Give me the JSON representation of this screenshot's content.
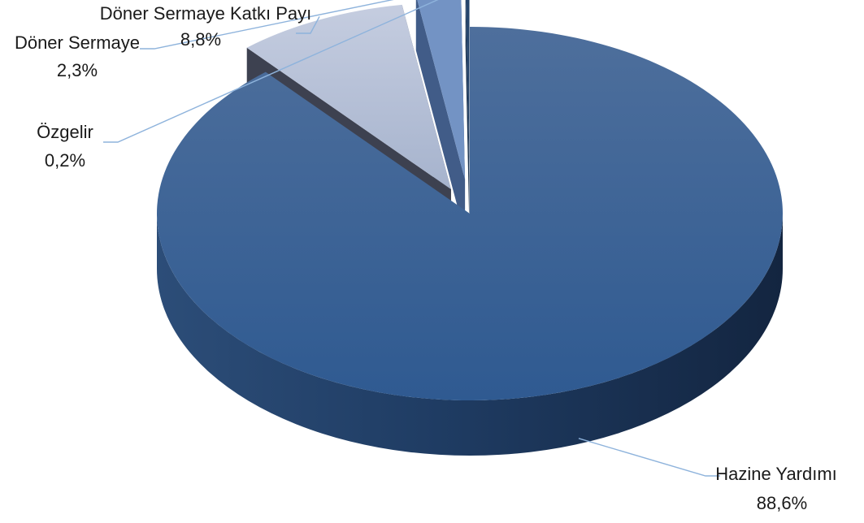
{
  "chart_data": {
    "type": "pie",
    "title": "",
    "slices": [
      {
        "label": "Hazine Yardımı",
        "value": 88.6,
        "value_label": "88,6%",
        "color": "#355f96"
      },
      {
        "label": "Döner Sermaye Katkı Payı",
        "value": 8.8,
        "value_label": "8,8%",
        "color": "#b2bdd4"
      },
      {
        "label": "Döner Sermaye",
        "value": 2.3,
        "value_label": "2,3%",
        "color": "#7393c4"
      },
      {
        "label": "Özgelir",
        "value": 0.2,
        "value_label": "0,2%",
        "color": "#26456c"
      }
    ],
    "legend": "none",
    "style": "3d-exploded"
  }
}
